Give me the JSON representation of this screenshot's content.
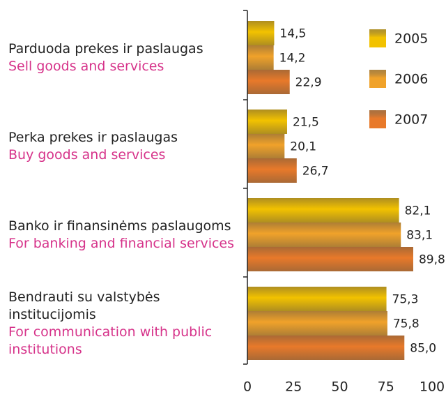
{
  "chart_data": {
    "type": "bar",
    "orientation": "horizontal",
    "categories": [
      "Parduoda prekes ir paslaugas",
      "Perka prekes ir paslaugas",
      "Banko ir finansinėms paslaugoms",
      "Bendrauti su valstybės institucijomis"
    ],
    "categories_en": [
      "Sell goods and services",
      "Buy goods and services",
      "For banking and financial services",
      "For communication with public institutions"
    ],
    "series": [
      {
        "name": "2005",
        "color": "#f2c200",
        "values": [
          14.5,
          21.5,
          82.1,
          75.3
        ],
        "value_labels": [
          "14,5",
          "21,5",
          "82,1",
          "75,3"
        ]
      },
      {
        "name": "2006",
        "color": "#f0a22a",
        "values": [
          14.2,
          20.1,
          83.1,
          75.8
        ],
        "value_labels": [
          "14,2",
          "20,1",
          "83,1",
          "75,8"
        ]
      },
      {
        "name": "2007",
        "color": "#e8792a",
        "values": [
          22.9,
          26.7,
          89.8,
          85.0
        ],
        "value_labels": [
          "22,9",
          "26,7",
          "89,8",
          "85,0"
        ]
      }
    ],
    "xlim": [
      0,
      100
    ],
    "xticks": [
      0,
      25,
      50,
      75,
      100
    ],
    "legend": "top-right"
  }
}
